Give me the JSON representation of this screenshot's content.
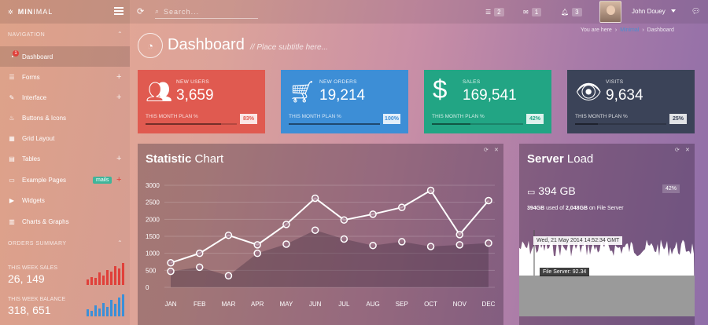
{
  "brand": {
    "bold": "MIN",
    "light": "IMAL"
  },
  "topbar": {
    "search_placeholder": "Search...",
    "messages_count": "2",
    "mail_count": "1",
    "alerts_count": "3",
    "user_name": "John Douey"
  },
  "sidebar": {
    "nav_heading": "NAVIGATION",
    "items": [
      {
        "label": "Dashboard",
        "icon": "dashboard-icon",
        "badge_dot": "1"
      },
      {
        "label": "Forms",
        "icon": "list-icon"
      },
      {
        "label": "Interface",
        "icon": "pencil-icon"
      },
      {
        "label": "Buttons & Icons",
        "icon": "fire-icon"
      },
      {
        "label": "Grid Layout",
        "icon": "grid-icon"
      },
      {
        "label": "Tables",
        "icon": "table-icon"
      },
      {
        "label": "Example Pages",
        "icon": "desktop-icon",
        "badge": "mails"
      },
      {
        "label": "Widgets",
        "icon": "play-icon"
      },
      {
        "label": "Charts & Graphs",
        "icon": "chart-icon"
      }
    ],
    "orders_heading": "ORDERS SUMMARY",
    "stats": [
      {
        "label": "THIS WEEK SALES",
        "value": "26, 149",
        "color": "#e0403a",
        "bars": [
          4,
          6,
          5,
          9,
          7,
          11,
          10,
          14,
          12,
          16
        ]
      },
      {
        "label": "THIS WEEK BALANCE",
        "value": "318, 651",
        "color": "#3a8fd8",
        "bars": [
          5,
          4,
          8,
          6,
          10,
          7,
          12,
          9,
          14,
          16
        ]
      }
    ]
  },
  "header": {
    "title": "Dashboard",
    "subtitle": "// Place subtitle here...",
    "crumb_prefix": "You are here",
    "crumb_link": "Minimal",
    "crumb_current": "Dashboard"
  },
  "tiles": [
    {
      "label": "NEW USERS",
      "value": "3,659",
      "plan": "THIS MONTH PLAN %",
      "pct": "83%",
      "fill": 0.83,
      "color": "#e05a50",
      "icon": "users-icon"
    },
    {
      "label": "NEW ORDERS",
      "value": "19,214",
      "plan": "THIS MONTH PLAN %",
      "pct": "100%",
      "fill": 1.0,
      "color": "#3d8ed6",
      "icon": "cart-icon"
    },
    {
      "label": "SALES",
      "value": "169,541",
      "plan": "THIS MONTH PLAN %",
      "pct": "42%",
      "fill": 0.42,
      "color": "#22a584",
      "icon": "dollar-icon"
    },
    {
      "label": "VISITS",
      "value": "9,634",
      "plan": "THIS MONTH PLAN %",
      "pct": "25%",
      "fill": 0.25,
      "color": "#3b4358",
      "icon": "eye-icon"
    }
  ],
  "statistic": {
    "title_bold": "Statistic",
    "title_light": "Chart"
  },
  "chart_data": {
    "type": "line",
    "title": "Statistic Chart",
    "categories": [
      "JAN",
      "FEB",
      "MAR",
      "APR",
      "MAY",
      "JUN",
      "JUL",
      "AUG",
      "SEP",
      "OCT",
      "NOV",
      "DEC"
    ],
    "series": [
      {
        "values": [
          720,
          1000,
          1530,
          1250,
          1850,
          2620,
          1980,
          2150,
          2350,
          2850,
          1550,
          2550
        ]
      },
      {
        "values": [
          470,
          590,
          340,
          1000,
          1270,
          1680,
          1420,
          1230,
          1340,
          1200,
          1250,
          1300
        ]
      }
    ],
    "ylim": [
      0,
      3000
    ],
    "yticks": [
      "0",
      "500",
      "1000",
      "1500",
      "2000",
      "2500",
      "3000"
    ],
    "grid": true
  },
  "server": {
    "title_bold": "Server",
    "title_light": "Load",
    "storage": "394 GB",
    "pct": "42%",
    "used_bold1": "394GB",
    "used_text1": " used of ",
    "used_bold2": "2,048GB",
    "used_text2": " on File Server",
    "tooltip_date": "Wed, 21 May 2014 14:52:34 GMT",
    "tooltip_value": "File Server: 92.34"
  }
}
